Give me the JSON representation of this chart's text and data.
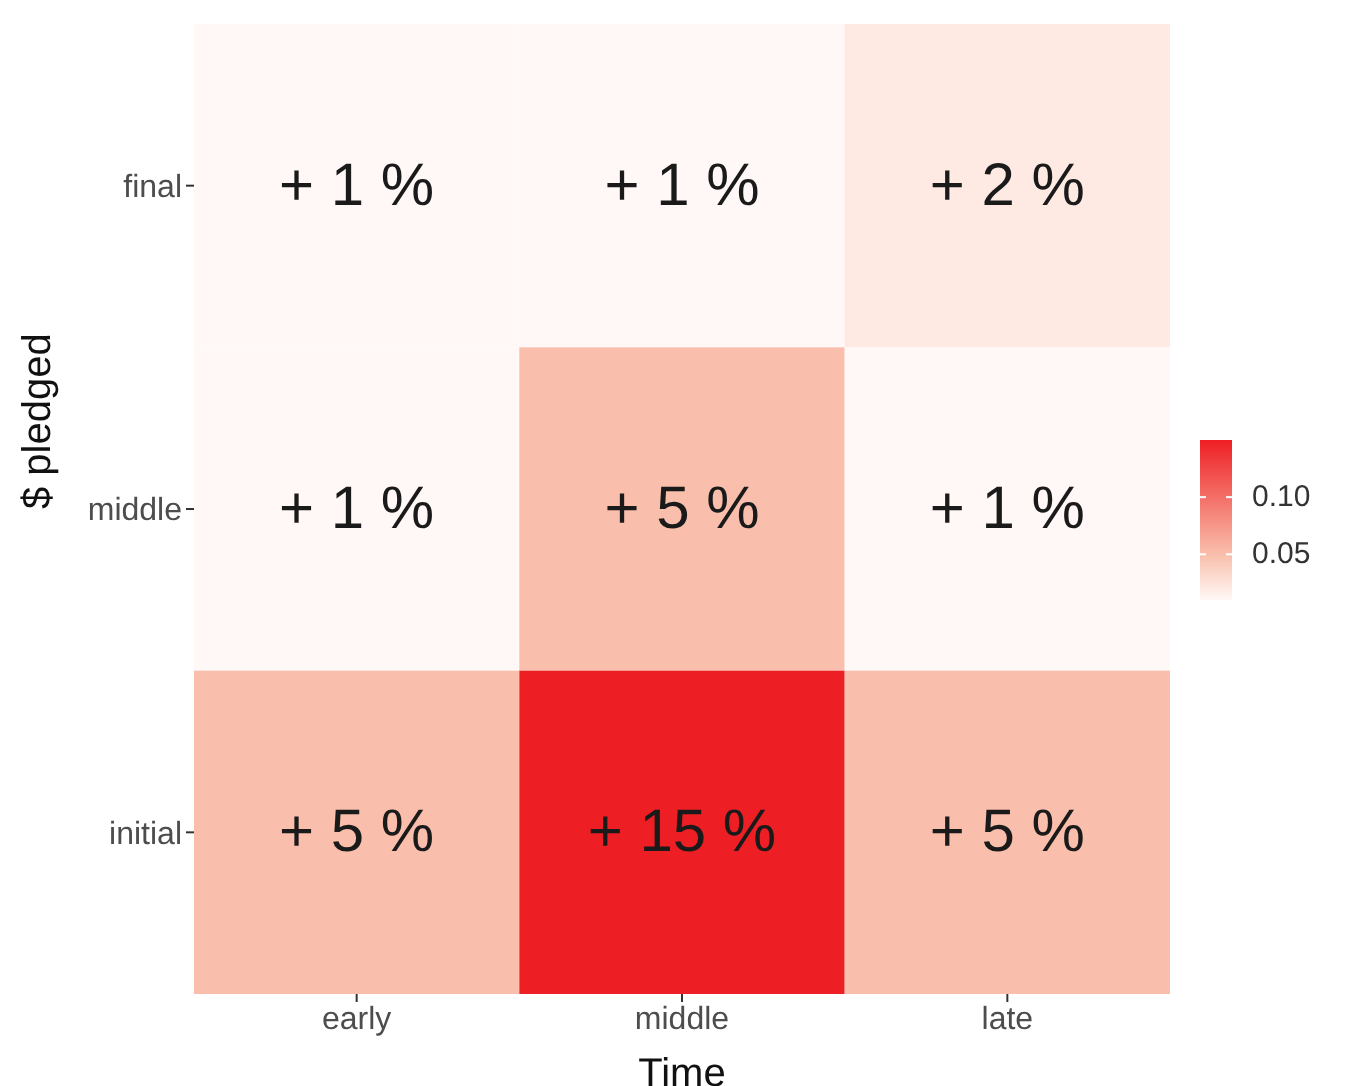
{
  "chart_data": {
    "type": "heatmap",
    "xlabel": "Time",
    "ylabel": "$ pledged",
    "categories": [
      "early",
      "middle",
      "late"
    ],
    "y_categories": [
      "final",
      "middle",
      "initial"
    ],
    "cells": [
      [
        0.01,
        0.01,
        0.02
      ],
      [
        0.01,
        0.05,
        0.01
      ],
      [
        0.05,
        0.15,
        0.05
      ]
    ],
    "cell_labels": [
      [
        "+ 1 %",
        "+ 1 %",
        "+ 2 %"
      ],
      [
        "+ 1 %",
        "+ 5 %",
        "+ 1 %"
      ],
      [
        "+ 5 %",
        "+ 15 %",
        "+ 5 %"
      ]
    ],
    "clim": [
      0.01,
      0.15
    ],
    "cticks": [
      0.05,
      {
        "value": 0.1,
        "label": "0.10"
      }
    ],
    "grid": false
  }
}
